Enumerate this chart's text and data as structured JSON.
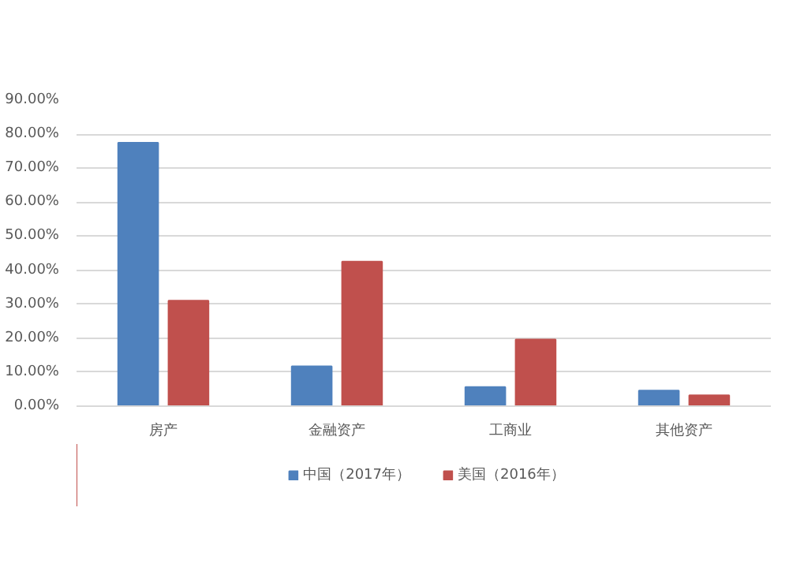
{
  "chart_data": {
    "type": "bar",
    "categories": [
      "房产",
      "金融资产",
      "工商业",
      "其他资产"
    ],
    "series": [
      {
        "name": "中国（2017年）",
        "color": "#4f81bd",
        "values": [
          77.5,
          11.7,
          5.6,
          4.6
        ]
      },
      {
        "name": "美国（2016年）",
        "color": "#c0504d",
        "values": [
          31,
          42.5,
          19.6,
          3.2
        ]
      }
    ],
    "ylim": [
      0,
      90
    ],
    "yticks": [
      {
        "value": 0,
        "label": "0.00%"
      },
      {
        "value": 10,
        "label": "10.00%"
      },
      {
        "value": 20,
        "label": "20.00%"
      },
      {
        "value": 30,
        "label": "30.00%"
      },
      {
        "value": 40,
        "label": "40.00%"
      },
      {
        "value": 50,
        "label": "50.00%"
      },
      {
        "value": 60,
        "label": "60.00%"
      },
      {
        "value": 70,
        "label": "70.00%"
      },
      {
        "value": 80,
        "label": "80.00%"
      },
      {
        "value": 90,
        "label": "90.00%"
      }
    ],
    "grid": "y",
    "legend": "bottom"
  }
}
